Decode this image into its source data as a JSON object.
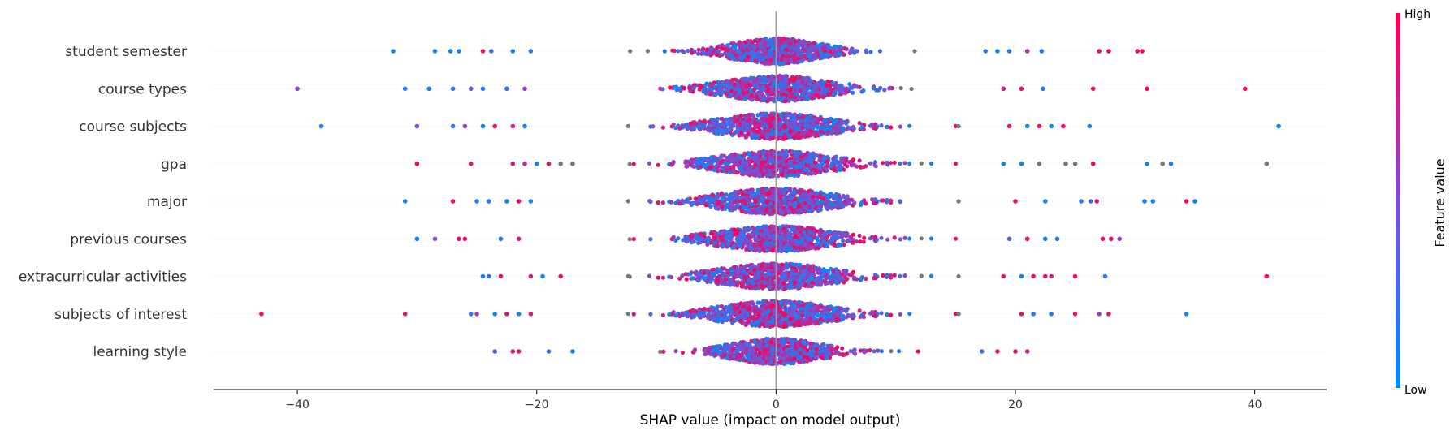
{
  "chart_data": {
    "type": "scatter",
    "subtype": "shap-beeswarm",
    "title": "",
    "xlabel": "SHAP value (impact on model output)",
    "xlim": [
      -47,
      46
    ],
    "xticks": [
      -40,
      -20,
      0,
      20,
      40
    ],
    "xtick_labels": [
      "−40",
      "−20",
      "0",
      "20",
      "40"
    ],
    "colorbar": {
      "label": "Feature value",
      "high_label": "High",
      "low_label": "Low",
      "low_color": "#008bfb",
      "high_color": "#ff0052"
    },
    "colors": {
      "low": "#008bfb",
      "mid": "#7f4dd3",
      "high": "#ff0052",
      "missing": "#777777",
      "axis": "#000000",
      "zero_line": "#999999",
      "grid": "#cccccc"
    },
    "features": [
      {
        "name": "student semester",
        "spread": 9.5,
        "outliers": [
          [
            -32,
            0.05
          ],
          [
            -28.5,
            0.1
          ],
          [
            -27.2,
            0.05
          ],
          [
            -26.5,
            0.1
          ],
          [
            -24.5,
            0.9
          ],
          [
            -23.8,
            0.3
          ],
          [
            -22,
            0.1
          ],
          [
            -20.5,
            0.2
          ],
          [
            17.5,
            0.2
          ],
          [
            18.5,
            0.05
          ],
          [
            19.5,
            0.1
          ],
          [
            21,
            0.7
          ],
          [
            22.2,
            0.1
          ],
          [
            27,
            0.9
          ],
          [
            27.8,
            0.95
          ],
          [
            30.2,
            0.9
          ],
          [
            30.6,
            1.0
          ]
        ]
      },
      {
        "name": "course types",
        "spread": 11,
        "outliers": [
          [
            -40,
            0.5
          ],
          [
            -31,
            0.1
          ],
          [
            -29,
            0.1
          ],
          [
            -27,
            0.2
          ],
          [
            -25.5,
            0.4
          ],
          [
            -24.5,
            0.1
          ],
          [
            -22.5,
            0.2
          ],
          [
            -21,
            0.6
          ],
          [
            19,
            0.8
          ],
          [
            20.5,
            0.9
          ],
          [
            22.3,
            0.1
          ],
          [
            26.5,
            0.9
          ],
          [
            31,
            0.95
          ],
          [
            39.2,
            0.95
          ]
        ]
      },
      {
        "name": "course subjects",
        "spread": 12,
        "outliers": [
          [
            -38,
            0.1
          ],
          [
            -30,
            0.5
          ],
          [
            -27,
            0.2
          ],
          [
            -26,
            0.6
          ],
          [
            -24.5,
            0.1
          ],
          [
            -23.5,
            0.9
          ],
          [
            -22,
            0.8
          ],
          [
            -21,
            0.1
          ],
          [
            19.5,
            0.9
          ],
          [
            21,
            0.1
          ],
          [
            22,
            0.9
          ],
          [
            23,
            0.1
          ],
          [
            24,
            0.95
          ],
          [
            26.2,
            0.1
          ],
          [
            42,
            0.05
          ]
        ]
      },
      {
        "name": "gpa",
        "spread": 12,
        "outliers": [
          [
            -30,
            0.95
          ],
          [
            -25.5,
            0.9
          ],
          [
            -22,
            0.8
          ],
          [
            -21,
            0.7
          ],
          [
            -20,
            0.1
          ],
          [
            -19,
            0.9
          ],
          [
            -18,
            -1
          ],
          [
            -17,
            -1
          ],
          [
            19,
            0.1
          ],
          [
            20.5,
            0.1
          ],
          [
            22,
            -1
          ],
          [
            24.2,
            -1
          ],
          [
            25,
            -1
          ],
          [
            26.5,
            0.95
          ],
          [
            31,
            0.1
          ],
          [
            32.3,
            -1
          ],
          [
            33,
            0.1
          ],
          [
            41,
            -1
          ]
        ]
      },
      {
        "name": "major",
        "spread": 12,
        "outliers": [
          [
            -31,
            0.1
          ],
          [
            -27,
            0.9
          ],
          [
            -25,
            0.1
          ],
          [
            -24,
            0.2
          ],
          [
            -22.5,
            0.1
          ],
          [
            -21.5,
            0.9
          ],
          [
            -20.5,
            0.1
          ],
          [
            20,
            0.9
          ],
          [
            22.5,
            0.1
          ],
          [
            25.5,
            0.1
          ],
          [
            26.3,
            0.3
          ],
          [
            26.8,
            0.9
          ],
          [
            30.8,
            0.1
          ],
          [
            31.5,
            0.1
          ],
          [
            34.3,
            0.9
          ],
          [
            35,
            0.1
          ]
        ]
      },
      {
        "name": "previous courses",
        "spread": 12,
        "outliers": [
          [
            -30,
            0.1
          ],
          [
            -28.5,
            0.5
          ],
          [
            -26.5,
            0.9
          ],
          [
            -26,
            0.9
          ],
          [
            -23,
            0.2
          ],
          [
            -21.5,
            0.8
          ],
          [
            19.5,
            0.3
          ],
          [
            21,
            0.9
          ],
          [
            22.5,
            0.1
          ],
          [
            23.5,
            0.2
          ],
          [
            27.3,
            0.9
          ],
          [
            28,
            0.9
          ],
          [
            28.7,
            0.6
          ]
        ]
      },
      {
        "name": "extracurricular activities",
        "spread": 12,
        "outliers": [
          [
            -24.5,
            0.1
          ],
          [
            -24,
            0.2
          ],
          [
            -23,
            0.9
          ],
          [
            -20.5,
            0.8
          ],
          [
            -19.5,
            0.1
          ],
          [
            -18,
            0.9
          ],
          [
            19,
            0.9
          ],
          [
            20.5,
            0.1
          ],
          [
            21.5,
            0.9
          ],
          [
            22.5,
            0.9
          ],
          [
            23,
            0.8
          ],
          [
            25,
            0.95
          ],
          [
            27.5,
            0.1
          ],
          [
            41,
            0.95
          ]
        ]
      },
      {
        "name": "subjects of interest",
        "spread": 12,
        "outliers": [
          [
            -43,
            0.95
          ],
          [
            -31,
            0.9
          ],
          [
            -25.5,
            0.2
          ],
          [
            -25,
            0.6
          ],
          [
            -23.5,
            0.1
          ],
          [
            -22.5,
            0.9
          ],
          [
            -21.5,
            0.1
          ],
          [
            -20.5,
            0.9
          ],
          [
            20.5,
            0.9
          ],
          [
            21.5,
            0.2
          ],
          [
            23,
            0.1
          ],
          [
            25,
            0.9
          ],
          [
            27,
            0.6
          ],
          [
            27.8,
            0.9
          ],
          [
            34.3,
            0.1
          ]
        ]
      },
      {
        "name": "learning style",
        "spread": 9.5,
        "outliers": [
          [
            -23.5,
            0.3
          ],
          [
            -22,
            0.9
          ],
          [
            -21.5,
            0.9
          ],
          [
            -19,
            0.2
          ],
          [
            -17,
            0.1
          ],
          [
            17.2,
            0.2
          ],
          [
            18.5,
            0.9
          ],
          [
            20,
            0.9
          ],
          [
            21,
            0.8
          ]
        ]
      }
    ]
  }
}
